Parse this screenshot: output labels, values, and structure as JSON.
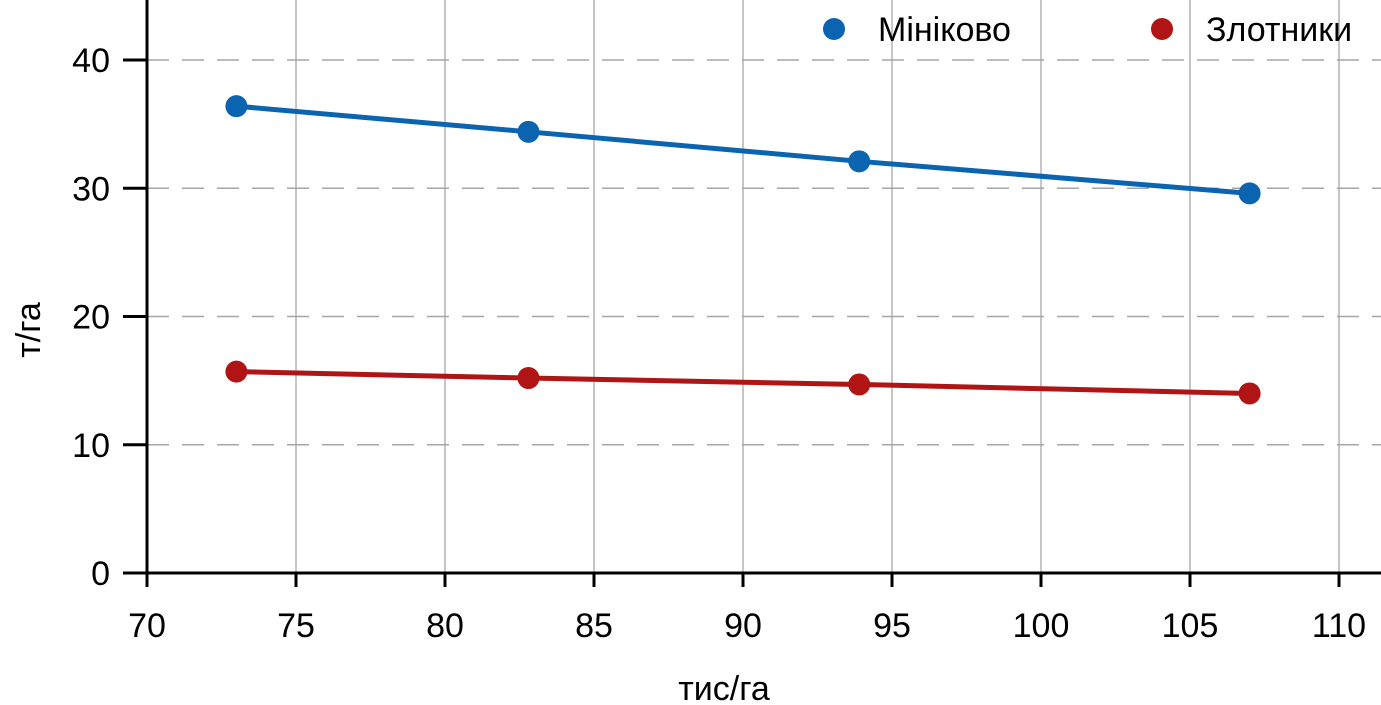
{
  "chart_data": {
    "type": "line",
    "xlabel": "тис/га",
    "ylabel": "т/га",
    "xlim": [
      70,
      110
    ],
    "ylim": [
      0,
      45
    ],
    "xticks": [
      70,
      75,
      80,
      85,
      90,
      95,
      100,
      105,
      110
    ],
    "yticks": [
      0,
      10,
      20,
      30,
      40
    ],
    "grid": {
      "x": "solid",
      "y": "dashed"
    },
    "legend_position": "top-right",
    "series": [
      {
        "name": "Мініково",
        "color": "#0a64b0",
        "x": [
          73,
          82.8,
          93.9,
          107
        ],
        "y": [
          36.4,
          34.4,
          32.1,
          29.6
        ]
      },
      {
        "name": "Злотники",
        "color": "#b01414",
        "x": [
          73,
          82.8,
          93.9,
          107
        ],
        "y": [
          15.7,
          15.2,
          14.7,
          14.0
        ]
      }
    ]
  }
}
